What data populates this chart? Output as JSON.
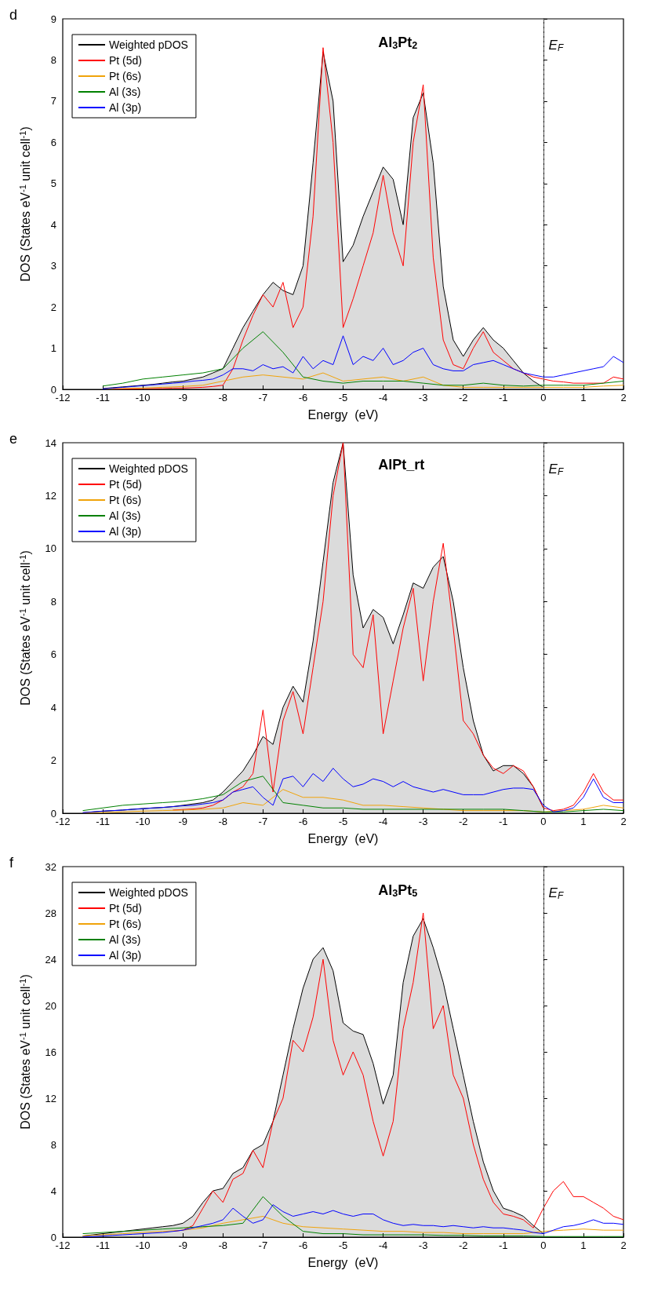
{
  "chart_data": [
    {
      "type": "line",
      "title": "Al$_{3}$Pt$_{2}$",
      "xlabel": "Energy  (eV)",
      "ylabel": "DOS (States eV$^{-1}$ unit cell$^{-1}$)",
      "annotations": [
        "d"
      ],
      "xlim": [
        -12,
        2
      ],
      "xticks": [
        -12,
        -11,
        -10,
        -9,
        -8,
        -7,
        -6,
        -5,
        -4,
        -3,
        -2,
        -1,
        0,
        1,
        2
      ],
      "ylim": [
        0,
        9
      ],
      "yticks": [
        0,
        1,
        2,
        3,
        4,
        5,
        6,
        7,
        8,
        9
      ],
      "grid": false,
      "legend": "top left",
      "marker": "none",
      "ref_lines": [
        {
          "axis": "x",
          "value": 0,
          "label": "E$_{F}$",
          "line_style": "dashed",
          "color": "#555555"
        }
      ],
      "x": [
        -11,
        -10.75,
        -10.5,
        -10.25,
        -10,
        -9.75,
        -9.5,
        -9.25,
        -9,
        -8.75,
        -8.5,
        -8.25,
        -8,
        -7.75,
        -7.5,
        -7.25,
        -7,
        -6.75,
        -6.5,
        -6.25,
        -6,
        -5.75,
        -5.5,
        -5.25,
        -5,
        -4.75,
        -4.5,
        -4.25,
        -4,
        -3.75,
        -3.5,
        -3.25,
        -3,
        -2.75,
        -2.5,
        -2.25,
        -2,
        -1.75,
        -1.5,
        -1.25,
        -1,
        -0.75,
        -0.5,
        -0.25,
        0,
        0.25,
        0.5,
        0.75,
        1,
        1.25,
        1.5,
        1.75,
        2
      ],
      "series": [
        {
          "name": "Weighted pDOS",
          "type": "area",
          "color": "#000000",
          "values": [
            0.02,
            0.04,
            0.06,
            0.08,
            0.1,
            0.12,
            0.15,
            0.18,
            0.2,
            0.25,
            0.3,
            0.4,
            0.5,
            1.0,
            1.5,
            1.9,
            2.3,
            2.6,
            2.4,
            2.3,
            3.0,
            5.5,
            8.2,
            7.0,
            3.1,
            3.5,
            4.2,
            4.8,
            5.4,
            5.1,
            4.0,
            6.6,
            7.2,
            5.5,
            2.5,
            1.2,
            0.8,
            1.2,
            1.5,
            1.2,
            1.0,
            0.7,
            0.4,
            0.2,
            0.05,
            null,
            null,
            null,
            null,
            null,
            null,
            null,
            null
          ]
        },
        {
          "name": "Pt (5d)",
          "color": "#ff0000",
          "values": [
            null,
            0.01,
            0.01,
            0.01,
            0.02,
            0.02,
            0.02,
            0.03,
            0.03,
            0.04,
            0.05,
            0.07,
            0.1,
            0.5,
            1.2,
            1.8,
            2.3,
            2.0,
            2.6,
            1.5,
            2.0,
            4.2,
            8.3,
            6.0,
            1.5,
            2.2,
            3.0,
            3.8,
            5.2,
            3.8,
            3.0,
            6.0,
            7.4,
            3.2,
            1.2,
            0.6,
            0.5,
            1.0,
            1.4,
            0.9,
            0.7,
            0.5,
            0.4,
            0.3,
            0.25,
            0.2,
            0.18,
            0.15,
            0.15,
            0.15,
            0.15,
            0.3,
            0.25
          ]
        },
        {
          "name": "Pt (6s)",
          "color": "#f0a30a",
          "x": [
            -11,
            -10.5,
            -10,
            -9.5,
            -9,
            -8.5,
            -8,
            -7.5,
            -7,
            -6.5,
            -6,
            -5.5,
            -5,
            -4.5,
            -4,
            -3.5,
            -3,
            -2.5,
            -2,
            -1.5,
            -1,
            -0.5,
            0,
            0.5,
            1,
            1.5,
            2
          ],
          "values": [
            0.01,
            0.02,
            0.03,
            0.05,
            0.07,
            0.1,
            0.2,
            0.3,
            0.35,
            0.3,
            0.25,
            0.4,
            0.2,
            0.25,
            0.3,
            0.2,
            0.3,
            0.1,
            0.05,
            0.05,
            0.05,
            0.05,
            0.05,
            0.05,
            0.05,
            0.08,
            0.1
          ]
        },
        {
          "name": "Al (3s)",
          "color": "#008000",
          "x": [
            -11,
            -10.5,
            -10,
            -9.5,
            -9,
            -8.5,
            -8,
            -7.5,
            -7,
            -6.5,
            -6,
            -5.5,
            -5,
            -4.5,
            -4,
            -3.5,
            -3,
            -2.5,
            -2,
            -1.5,
            -1,
            -0.5,
            0,
            0.5,
            1,
            1.5,
            2
          ],
          "values": [
            0.08,
            0.15,
            0.25,
            0.3,
            0.35,
            0.4,
            0.5,
            1.0,
            1.4,
            0.9,
            0.3,
            0.2,
            0.15,
            0.2,
            0.2,
            0.2,
            0.15,
            0.1,
            0.1,
            0.15,
            0.1,
            0.08,
            0.1,
            0.1,
            0.1,
            0.15,
            0.2
          ]
        },
        {
          "name": "Al (3p)",
          "color": "#0000ff",
          "values": [
            0.01,
            0.03,
            0.05,
            0.07,
            0.09,
            0.11,
            0.13,
            0.15,
            0.17,
            0.2,
            0.22,
            0.25,
            0.35,
            0.5,
            0.5,
            0.45,
            0.6,
            0.5,
            0.55,
            0.4,
            0.8,
            0.5,
            0.7,
            0.6,
            1.3,
            0.6,
            0.8,
            0.7,
            1.0,
            0.6,
            0.7,
            0.9,
            1.0,
            0.6,
            0.5,
            0.45,
            0.45,
            0.6,
            0.65,
            0.7,
            0.6,
            0.5,
            0.4,
            0.35,
            0.3,
            0.3,
            0.35,
            0.4,
            0.45,
            0.5,
            0.55,
            0.8,
            0.65
          ]
        }
      ]
    },
    {
      "type": "line",
      "title": "AlPt_rt",
      "xlabel": "Energy  (eV)",
      "ylabel": "DOS (States eV$^{-1}$ unit cell$^{-1}$)",
      "annotations": [
        "e"
      ],
      "xlim": [
        -12,
        2
      ],
      "xticks": [
        -12,
        -11,
        -10,
        -9,
        -8,
        -7,
        -6,
        -5,
        -4,
        -3,
        -2,
        -1,
        0,
        1,
        2
      ],
      "ylim": [
        0,
        14
      ],
      "yticks": [
        0,
        2,
        4,
        6,
        8,
        10,
        12,
        14
      ],
      "grid": false,
      "legend": "top left",
      "marker": "none",
      "ref_lines": [
        {
          "axis": "x",
          "value": 0,
          "label": "E$_{F}$",
          "line_style": "dashed",
          "color": "#555555"
        }
      ],
      "x": [
        -11.5,
        -11.25,
        -11,
        -10.75,
        -10.5,
        -10.25,
        -10,
        -9.75,
        -9.5,
        -9.25,
        -9,
        -8.75,
        -8.5,
        -8.25,
        -8,
        -7.75,
        -7.5,
        -7.25,
        -7,
        -6.75,
        -6.5,
        -6.25,
        -6,
        -5.75,
        -5.5,
        -5.25,
        -5,
        -4.75,
        -4.5,
        -4.25,
        -4,
        -3.75,
        -3.5,
        -3.25,
        -3,
        -2.75,
        -2.5,
        -2.25,
        -2,
        -1.75,
        -1.5,
        -1.25,
        -1,
        -0.75,
        -0.5,
        -0.25,
        0,
        0.25,
        0.5,
        0.75,
        1,
        1.25,
        1.5,
        1.75,
        2
      ],
      "series": [
        {
          "name": "Weighted pDOS",
          "type": "area",
          "color": "#000000",
          "values": [
            0.02,
            0.05,
            0.08,
            0.1,
            0.12,
            0.15,
            0.18,
            0.2,
            0.22,
            0.25,
            0.3,
            0.35,
            0.4,
            0.5,
            0.8,
            1.2,
            1.6,
            2.2,
            2.9,
            2.6,
            4.0,
            4.8,
            4.2,
            6.5,
            9.5,
            12.5,
            14.0,
            9.0,
            7.0,
            7.7,
            7.4,
            6.4,
            7.5,
            8.7,
            8.5,
            9.3,
            9.7,
            8.0,
            5.5,
            3.5,
            2.2,
            1.6,
            1.8,
            1.8,
            1.5,
            1.0,
            0.2,
            null,
            null,
            null,
            null,
            null,
            null,
            null,
            null
          ]
        },
        {
          "name": "Pt (5d)",
          "color": "#ff0000",
          "values": [
            null,
            null,
            null,
            null,
            null,
            null,
            null,
            null,
            null,
            0.12,
            0.14,
            0.16,
            0.2,
            0.3,
            0.5,
            0.8,
            1.0,
            1.5,
            3.9,
            0.8,
            3.5,
            4.6,
            3.0,
            5.5,
            8.0,
            12.0,
            14.0,
            6.0,
            5.5,
            7.5,
            3.0,
            5.0,
            7.0,
            8.5,
            5.0,
            8.0,
            10.2,
            7.0,
            3.5,
            3.0,
            2.2,
            1.7,
            1.5,
            1.8,
            1.6,
            1.0,
            0.2,
            0.1,
            0.15,
            0.3,
            0.8,
            1.5,
            0.8,
            0.5,
            0.5
          ]
        },
        {
          "name": "Pt (6s)",
          "color": "#f0a30a",
          "x": [
            -11.5,
            -11,
            -10.5,
            -10,
            -9.5,
            -9,
            -8.5,
            -8,
            -7.5,
            -7,
            -6.5,
            -6,
            -5.5,
            -5,
            -4.5,
            -4,
            -3.5,
            -3,
            -2.5,
            -2,
            -1.5,
            -1,
            -0.5,
            0,
            0.5,
            1,
            1.5,
            2
          ],
          "values": [
            0.01,
            0.03,
            0.05,
            0.08,
            0.1,
            0.12,
            0.15,
            0.2,
            0.4,
            0.3,
            0.9,
            0.6,
            0.6,
            0.5,
            0.3,
            0.3,
            0.25,
            0.2,
            0.15,
            0.1,
            0.1,
            0.1,
            0.1,
            0.05,
            0.1,
            0.15,
            0.3,
            0.2
          ]
        },
        {
          "name": "Al (3s)",
          "color": "#008000",
          "x": [
            -11.5,
            -11,
            -10.5,
            -10,
            -9.5,
            -9,
            -8.5,
            -8,
            -7.5,
            -7,
            -6.5,
            -6,
            -5.5,
            -5,
            -4.5,
            -4,
            -3.5,
            -3,
            -2.5,
            -2,
            -1.5,
            -1,
            -0.5,
            0,
            0.5,
            1,
            1.5,
            2
          ],
          "values": [
            0.1,
            0.2,
            0.3,
            0.35,
            0.4,
            0.45,
            0.55,
            0.7,
            1.2,
            1.4,
            0.4,
            0.3,
            0.2,
            0.2,
            0.15,
            0.15,
            0.15,
            0.15,
            0.15,
            0.15,
            0.15,
            0.15,
            0.1,
            0.05,
            0.05,
            0.1,
            0.15,
            0.1
          ]
        },
        {
          "name": "Al (3p)",
          "color": "#0000ff",
          "values": [
            0.02,
            0.05,
            0.08,
            0.1,
            0.12,
            0.15,
            0.17,
            0.2,
            0.22,
            0.25,
            0.28,
            0.3,
            0.35,
            0.4,
            0.5,
            0.8,
            0.9,
            1.0,
            0.6,
            0.3,
            1.3,
            1.4,
            1.0,
            1.5,
            1.2,
            1.7,
            1.3,
            1.0,
            1.1,
            1.3,
            1.2,
            1.0,
            1.2,
            1.0,
            0.9,
            0.8,
            0.9,
            0.8,
            0.7,
            0.7,
            0.7,
            0.8,
            0.9,
            0.95,
            0.95,
            0.9,
            0.3,
            0.05,
            0.1,
            0.2,
            0.6,
            1.3,
            0.6,
            0.4,
            0.4
          ]
        }
      ]
    },
    {
      "type": "line",
      "title": "Al$_{3}$Pt$_{5}$",
      "xlabel": "Energy  (eV)",
      "ylabel": "DOS (States eV$^{-1}$ unit cell$^{-1}$)",
      "annotations": [
        "f"
      ],
      "xlim": [
        -12,
        2
      ],
      "xticks": [
        -12,
        -11,
        -10,
        -9,
        -8,
        -7,
        -6,
        -5,
        -4,
        -3,
        -2,
        -1,
        0,
        1,
        2
      ],
      "ylim": [
        0,
        32
      ],
      "yticks": [
        0,
        4,
        8,
        12,
        16,
        20,
        24,
        28,
        32
      ],
      "grid": false,
      "legend": "top left",
      "marker": "none",
      "ref_lines": [
        {
          "axis": "x",
          "value": 0,
          "label": "E$_{F}$",
          "line_style": "dashed",
          "color": "#555555"
        }
      ],
      "x": [
        -11.5,
        -11.25,
        -11,
        -10.75,
        -10.5,
        -10.25,
        -10,
        -9.75,
        -9.5,
        -9.25,
        -9,
        -8.75,
        -8.5,
        -8.25,
        -8,
        -7.75,
        -7.5,
        -7.25,
        -7,
        -6.75,
        -6.5,
        -6.25,
        -6,
        -5.75,
        -5.5,
        -5.25,
        -5,
        -4.75,
        -4.5,
        -4.25,
        -4,
        -3.75,
        -3.5,
        -3.25,
        -3,
        -2.75,
        -2.5,
        -2.25,
        -2,
        -1.75,
        -1.5,
        -1.25,
        -1,
        -0.75,
        -0.5,
        -0.25,
        0,
        0.25,
        0.5,
        0.75,
        1,
        1.25,
        1.5,
        1.75,
        2
      ],
      "series": [
        {
          "name": "Weighted pDOS",
          "type": "area",
          "color": "#000000",
          "values": [
            0.1,
            0.2,
            0.3,
            0.4,
            0.5,
            0.6,
            0.7,
            0.8,
            0.9,
            1.0,
            1.2,
            1.8,
            3.0,
            4.0,
            4.2,
            5.5,
            6.0,
            7.5,
            8.0,
            10.0,
            14.0,
            18.0,
            21.5,
            24.0,
            25.0,
            23.0,
            18.5,
            17.8,
            17.5,
            15.0,
            11.5,
            14.0,
            22.0,
            26.0,
            27.5,
            25.0,
            22.0,
            18.0,
            14.0,
            10.0,
            6.5,
            4.0,
            2.5,
            2.2,
            1.8,
            1.0,
            0.3,
            null,
            null,
            null,
            null,
            null,
            null,
            null,
            null
          ]
        },
        {
          "name": "Pt (5d)",
          "color": "#ff0000",
          "values": [
            null,
            null,
            null,
            null,
            null,
            null,
            null,
            null,
            null,
            0.5,
            0.6,
            1.0,
            2.5,
            4.0,
            3.0,
            5.0,
            5.5,
            7.5,
            6.0,
            10.0,
            12.0,
            17.0,
            16.0,
            19.0,
            24.0,
            17.0,
            14.0,
            16.0,
            14.0,
            10.0,
            7.0,
            10.0,
            18.0,
            22.0,
            28.0,
            18.0,
            20.0,
            14.0,
            12.0,
            8.0,
            5.0,
            3.0,
            2.0,
            1.8,
            1.5,
            0.8,
            2.5,
            4.0,
            4.8,
            3.5,
            3.5,
            3.0,
            2.5,
            1.8,
            1.5
          ]
        },
        {
          "name": "Pt (6s)",
          "color": "#f0a30a",
          "x": [
            -11.5,
            -11,
            -10.5,
            -10,
            -9.5,
            -9,
            -8.5,
            -8,
            -7.5,
            -7,
            -6.5,
            -6,
            -5.5,
            -5,
            -4.5,
            -4,
            -3.5,
            -3,
            -2.5,
            -2,
            -1.5,
            -1,
            -0.5,
            0,
            0.5,
            1,
            1.5,
            2
          ],
          "values": [
            0.1,
            0.2,
            0.3,
            0.4,
            0.5,
            0.6,
            0.8,
            1.2,
            1.5,
            1.8,
            1.2,
            0.9,
            0.8,
            0.7,
            0.6,
            0.5,
            0.5,
            0.4,
            0.4,
            0.3,
            0.3,
            0.3,
            0.3,
            0.5,
            0.6,
            0.7,
            0.6,
            0.6
          ]
        },
        {
          "name": "Al (3s)",
          "color": "#008000",
          "x": [
            -11.5,
            -11,
            -10.5,
            -10,
            -9.5,
            -9,
            -8.5,
            -8,
            -7.5,
            -7,
            -6.5,
            -6,
            -5.5,
            -5,
            -4.5,
            -4,
            -3.5,
            -3,
            -2.5,
            -2,
            -1.5,
            -1,
            -0.5,
            0,
            0.5,
            1,
            1.5,
            2
          ],
          "values": [
            0.3,
            0.4,
            0.5,
            0.6,
            0.7,
            0.8,
            0.9,
            1.0,
            1.2,
            3.5,
            1.8,
            0.5,
            0.3,
            0.3,
            0.2,
            0.2,
            0.2,
            0.2,
            0.15,
            0.15,
            0.1,
            0.1,
            0.1,
            0.05,
            0.05,
            0.05,
            0.05,
            0.05
          ]
        },
        {
          "name": "Al (3p)",
          "color": "#0000ff",
          "values": [
            0.02,
            0.05,
            0.1,
            0.15,
            0.2,
            0.25,
            0.3,
            0.35,
            0.4,
            0.5,
            0.6,
            0.8,
            1.0,
            1.2,
            1.5,
            2.5,
            1.8,
            1.2,
            1.5,
            2.8,
            2.2,
            1.8,
            2.0,
            2.2,
            2.0,
            2.3,
            2.0,
            1.8,
            2.0,
            2.0,
            1.5,
            1.2,
            1.0,
            1.1,
            1.0,
            1.0,
            0.9,
            1.0,
            0.9,
            0.8,
            0.9,
            0.8,
            0.8,
            0.7,
            0.6,
            0.4,
            0.3,
            0.6,
            0.9,
            1.0,
            1.2,
            1.5,
            1.2,
            1.2,
            1.1
          ]
        }
      ]
    }
  ]
}
